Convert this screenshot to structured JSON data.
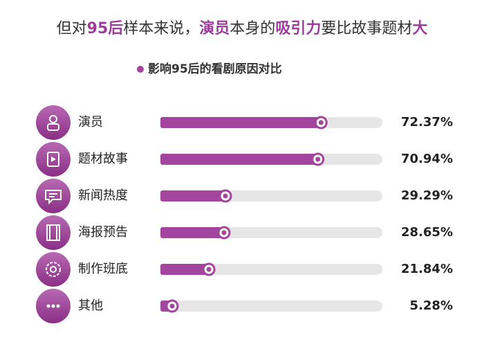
{
  "chart_data": {
    "type": "bar",
    "title": [
      {
        "text": "但对"
      },
      {
        "text": "95后",
        "highlight": true
      },
      {
        "text": "样本来说，"
      },
      {
        "text": "演员",
        "highlight": true
      },
      {
        "text": "本身的"
      },
      {
        "text": "吸引力",
        "highlight": true
      },
      {
        "text": "要比故事题材"
      },
      {
        "text": "大",
        "highlight": true
      }
    ],
    "highlight_color": "#9c3d9b",
    "categories": [
      "演员",
      "题材故事",
      "新闻热度",
      "海报预告",
      "制作班底",
      "其他"
    ],
    "series": [
      {
        "name": "影响95后的看剧原因对比",
        "color": "#a3449f",
        "values": [
          72.37,
          70.94,
          29.29,
          28.65,
          21.84,
          5.28
        ],
        "value_labels": [
          "72.37%",
          "70.94%",
          "29.29%",
          "28.65%",
          "21.84%",
          "5.28%"
        ]
      }
    ],
    "xlim": [
      0,
      100
    ]
  }
}
